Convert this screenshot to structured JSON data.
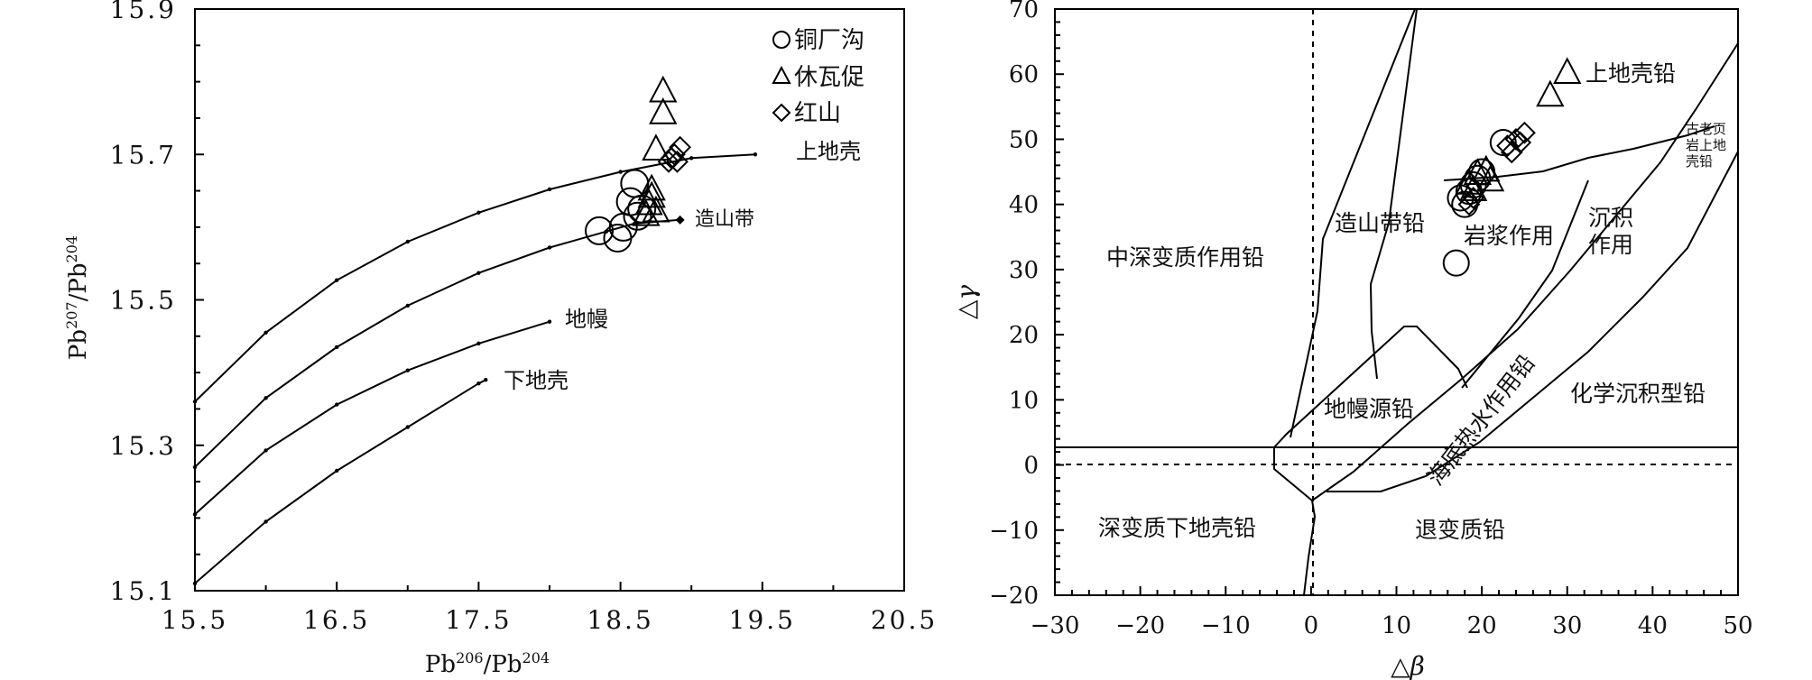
{
  "chart_data": [
    {
      "type": "line",
      "xlabel_base": "Pb",
      "xlabel_sup": "206",
      "xlabel_mid": "/Pb",
      "xlabel_sup2": "204",
      "ylabel_base": "Pb",
      "ylabel_sup": "207",
      "ylabel_mid": "/Pb",
      "ylabel_sup2": "204",
      "xlim": [
        15.5,
        20.5
      ],
      "ylim": [
        15.1,
        15.9
      ],
      "xticks": [
        "15.5",
        "16.5",
        "17.5",
        "18.5",
        "19.5",
        "20.5"
      ],
      "yticks": [
        "15.1",
        "15.3",
        "15.5",
        "15.7",
        "15.9"
      ],
      "curves": [
        {
          "name": "上地壳",
          "x": [
            15.5,
            16.0,
            16.5,
            17.0,
            17.5,
            18.0,
            18.5,
            19.0,
            19.45
          ],
          "y": [
            15.36,
            15.455,
            15.527,
            15.58,
            15.62,
            15.652,
            15.676,
            15.695,
            15.7
          ]
        },
        {
          "name": "造山带",
          "x": [
            15.5,
            16.0,
            16.5,
            17.0,
            17.5,
            18.0,
            18.4,
            18.6,
            18.92
          ],
          "y": [
            15.27,
            15.365,
            15.435,
            15.492,
            15.537,
            15.572,
            15.594,
            15.605,
            15.61
          ]
        },
        {
          "name": "地幔",
          "x": [
            15.5,
            16.0,
            16.5,
            17.0,
            17.5,
            18.0
          ],
          "y": [
            15.205,
            15.293,
            15.356,
            15.403,
            15.44,
            15.47
          ]
        },
        {
          "name": "下地壳",
          "x": [
            15.5,
            16.0,
            16.5,
            17.0,
            17.5,
            17.55
          ],
          "y": [
            15.11,
            15.195,
            15.265,
            15.325,
            15.385,
            15.39
          ]
        }
      ],
      "legend": [
        "铜厂沟",
        "休瓦促",
        "红山"
      ],
      "series": [
        {
          "name": "铜厂沟",
          "marker": "circle",
          "x": [
            18.35,
            18.48,
            18.52,
            18.57,
            18.6,
            18.62,
            18.65
          ],
          "y": [
            15.595,
            15.585,
            15.6,
            15.635,
            15.66,
            15.615,
            15.625
          ]
        },
        {
          "name": "休瓦促",
          "marker": "triangle",
          "x": [
            18.8,
            18.8,
            18.75,
            18.72,
            18.7,
            18.68,
            18.75,
            18.72
          ],
          "y": [
            15.785,
            15.755,
            15.705,
            15.65,
            15.63,
            15.615,
            15.62,
            15.64
          ]
        },
        {
          "name": "红山",
          "marker": "diamond",
          "x": [
            18.88,
            18.9,
            18.92,
            18.86,
            18.84
          ],
          "y": [
            15.7,
            15.69,
            15.71,
            15.695,
            15.69
          ]
        }
      ]
    },
    {
      "type": "scatter",
      "xlabel": "△β",
      "ylabel": "△γ",
      "xlim": [
        -30,
        50
      ],
      "ylim": [
        -20,
        70
      ],
      "xticks": [
        "−30",
        "−20",
        "−10",
        "0",
        "10",
        "20",
        "30",
        "40",
        "50"
      ],
      "yticks": [
        "−20",
        "−10",
        "0",
        "10",
        "20",
        "30",
        "40",
        "50",
        "60",
        "70"
      ],
      "region_labels": [
        "上地壳铅",
        "古老页",
        "岩上地",
        "壳铅",
        "造山带铅",
        "岩浆作用",
        "沉积",
        "作用",
        "中深变质作用铅",
        "地幔源铅",
        "海底热水作用铅",
        "化学沉积型铅",
        "深变质下地壳铅",
        "退变质铅"
      ],
      "series": [
        {
          "name": "铜厂沟",
          "marker": "circle",
          "x": [
            17,
            17.5,
            18,
            18.5,
            19,
            19.5,
            20,
            22.5
          ],
          "y": [
            31,
            41,
            40,
            42,
            43,
            44,
            45,
            49.5
          ]
        },
        {
          "name": "休瓦促",
          "marker": "triangle",
          "x": [
            30,
            28,
            18.5,
            19.5,
            20.5,
            21,
            19
          ],
          "y": [
            60,
            56.5,
            43,
            44.5,
            45,
            43.5,
            42
          ]
        },
        {
          "name": "红山",
          "marker": "diamond",
          "x": [
            18.5,
            19,
            23,
            24,
            25,
            24.5,
            23.5
          ],
          "y": [
            40,
            41,
            49,
            50,
            51,
            49.5,
            48
          ]
        }
      ]
    }
  ]
}
